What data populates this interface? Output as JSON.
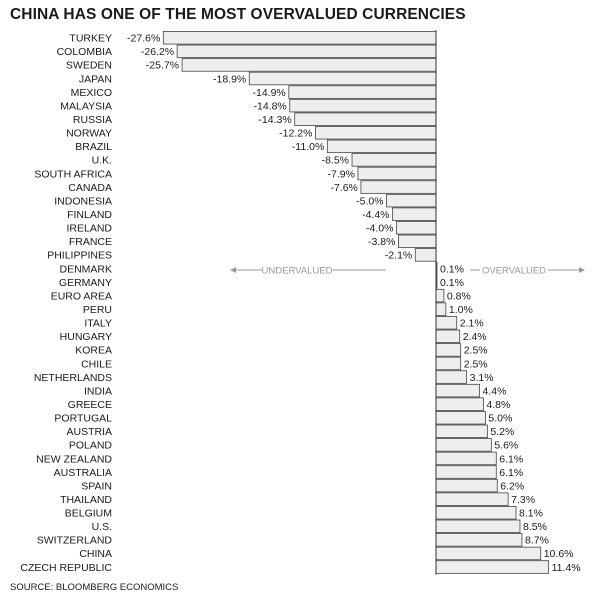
{
  "title": "CHINA HAS ONE OF THE MOST OVERVALUED CURRENCIES",
  "source": "SOURCE: BLOOMBERG ECONOMICS",
  "colors": {
    "bar_fill": "#eeeeee",
    "bar_stroke": "#444444",
    "axis": "#333333",
    "annotation": "#999999",
    "text": "#1a1a1a"
  },
  "chart_data": {
    "type": "bar",
    "orientation": "horizontal",
    "title": "CHINA HAS ONE OF THE MOST OVERVALUED CURRENCIES",
    "value_suffix": "%",
    "categories": [
      "TURKEY",
      "COLOMBIA",
      "SWEDEN",
      "JAPAN",
      "MEXICO",
      "MALAYSIA",
      "RUSSIA",
      "NORWAY",
      "BRAZIL",
      "U.K.",
      "SOUTH AFRICA",
      "CANADA",
      "INDONESIA",
      "FINLAND",
      "IRELAND",
      "FRANCE",
      "PHILIPPINES",
      "DENMARK",
      "GERMANY",
      "EURO AREA",
      "PERU",
      "ITALY",
      "HUNGARY",
      "KOREA",
      "CHILE",
      "NETHERLANDS",
      "INDIA",
      "GREECE",
      "PORTUGAL",
      "AUSTRIA",
      "POLAND",
      "NEW ZEALAND",
      "AUSTRALIA",
      "SPAIN",
      "THAILAND",
      "BELGIUM",
      "U.S.",
      "SWITZERLAND",
      "CHINA",
      "CZECH REPUBLIC"
    ],
    "values": [
      -27.6,
      -26.2,
      -25.7,
      -18.9,
      -14.9,
      -14.8,
      -14.3,
      -12.2,
      -11.0,
      -8.5,
      -7.9,
      -7.6,
      -5.0,
      -4.4,
      -4.0,
      -3.8,
      -2.1,
      0.1,
      0.1,
      0.8,
      1.0,
      2.1,
      2.4,
      2.5,
      2.5,
      3.1,
      4.4,
      4.8,
      5.0,
      5.2,
      5.6,
      6.1,
      6.1,
      6.2,
      7.3,
      8.1,
      8.5,
      8.7,
      10.6,
      11.4
    ],
    "value_labels": [
      "-27.6%",
      "-26.2%",
      "-25.7%",
      "-18.9%",
      "-14.9%",
      "-14.8%",
      "-14.3%",
      "-12.2%",
      "-11.0%",
      "-8.5%",
      "-7.9%",
      "-7.6%",
      "-5.0%",
      "-4.4%",
      "-4.0%",
      "-3.8%",
      "-2.1%",
      "0.1%",
      "0.1%",
      "0.8%",
      "1.0%",
      "2.1%",
      "2.4%",
      "2.5%",
      "2.5%",
      "3.1%",
      "4.4%",
      "4.8%",
      "5.0%",
      "5.2%",
      "5.6%",
      "6.1%",
      "6.1%",
      "6.2%",
      "7.3%",
      "8.1%",
      "8.5%",
      "8.7%",
      "10.6%",
      "11.4%"
    ],
    "xlim": [
      -30,
      12
    ],
    "annotations": {
      "left": "UNDERVALUED",
      "right": "OVERVALUED"
    },
    "grid": false,
    "legend": "none"
  }
}
